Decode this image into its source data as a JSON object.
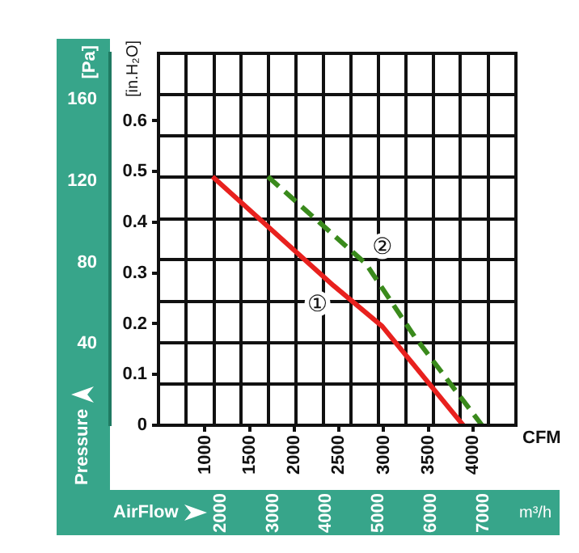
{
  "chart_data": {
    "type": "line",
    "xlabel": "CFM",
    "ylabel": "[in.H₂O]",
    "y2label": "[Pa]",
    "x2label": "m³/h",
    "xlim": [
      480,
      4480
    ],
    "ylim": [
      0,
      0.733
    ],
    "y2lim": [
      0,
      182.6
    ],
    "x2lim": [
      815,
      7611
    ],
    "xticks": [
      1000,
      1500,
      2000,
      2500,
      3000,
      3500,
      4000,
      {
        "value": 790,
        "label": null
      },
      {
        "value": 1100,
        "label": null
      },
      {
        "value": 1400,
        "label": null
      },
      {
        "value": 1710,
        "label": null
      },
      {
        "value": 2020,
        "label": null
      },
      {
        "value": 2330,
        "label": null
      },
      {
        "value": 2630,
        "label": null
      },
      {
        "value": 2940,
        "label": null
      },
      {
        "value": 3250,
        "label": null
      },
      {
        "value": 3560,
        "label": null
      },
      {
        "value": 3860,
        "label": null
      },
      {
        "value": 4170,
        "label": null
      }
    ],
    "yticks": [
      0,
      0.1,
      0.2,
      0.3,
      0.4,
      0.5,
      0.6,
      {
        "value": 0.081,
        "label": null
      },
      {
        "value": 0.163,
        "label": null
      },
      {
        "value": 0.244,
        "label": null
      },
      {
        "value": 0.326,
        "label": null
      },
      {
        "value": 0.407,
        "label": null
      },
      {
        "value": 0.489,
        "label": null
      },
      {
        "value": 0.57,
        "label": null
      },
      {
        "value": 0.652,
        "label": null
      }
    ],
    "y2ticks": [
      40,
      80,
      120,
      160
    ],
    "x2ticks": [
      2000,
      3000,
      4000,
      5000,
      6000,
      7000
    ],
    "grid": true,
    "legend": false,
    "marker": "none",
    "series": [
      {
        "name": "①",
        "color": "#e8211e",
        "line_style": "solid",
        "x": [
          1085,
          2440,
          2984,
          3890
        ],
        "values": [
          0.49,
          0.275,
          0.195,
          0
        ]
      },
      {
        "name": "②",
        "color": "#3a8a1c",
        "line_style": "dashed",
        "x": [
          1705,
          2803,
          3345,
          4100
        ],
        "values": [
          0.49,
          0.318,
          0.175,
          0
        ]
      }
    ],
    "annotations": [
      "Pressure",
      "AirFlow"
    ]
  }
}
